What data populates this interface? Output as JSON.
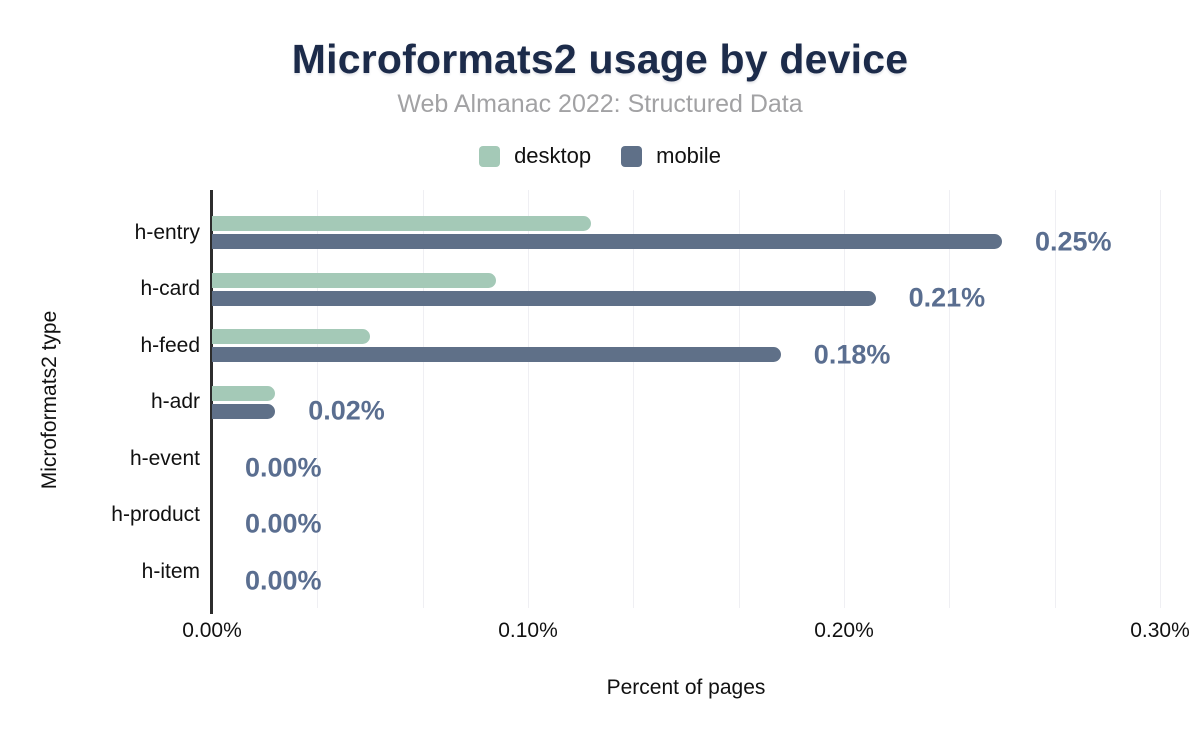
{
  "chart_data": {
    "type": "bar",
    "orientation": "horizontal",
    "title": "Microformats2 usage by device",
    "subtitle": "Web Almanac 2022: Structured Data",
    "xlabel": "Percent of pages",
    "ylabel": "Microformats2 type",
    "categories": [
      "h-entry",
      "h-card",
      "h-feed",
      "h-adr",
      "h-event",
      "h-product",
      "h-item"
    ],
    "series": [
      {
        "name": "desktop",
        "color": "#a4c9b7",
        "values": [
          0.12,
          0.09,
          0.05,
          0.02,
          0.0,
          0.0,
          0.0
        ]
      },
      {
        "name": "mobile",
        "color": "#5f7088",
        "values": [
          0.25,
          0.21,
          0.18,
          0.02,
          0.0,
          0.0,
          0.0
        ]
      }
    ],
    "value_labels": [
      "0.25%",
      "0.21%",
      "0.18%",
      "0.02%",
      "0.00%",
      "0.00%",
      "0.00%"
    ],
    "value_labels_for_series": "mobile",
    "xlim": [
      0,
      0.3
    ],
    "x_ticks": [
      {
        "label": "0.00%",
        "value": 0.0
      },
      {
        "label": "0.10%",
        "value": 0.1
      },
      {
        "label": "0.20%",
        "value": 0.2
      },
      {
        "label": "0.30%",
        "value": 0.3
      }
    ],
    "grid": true,
    "n_grid_intervals": 9,
    "legend_position": "top",
    "colors": {
      "title": "#1c2b4a",
      "subtitle": "#a2a2a4",
      "value_label": "#5a6e90",
      "axis_line": "#2d2d2d",
      "gridline": "#efeff3"
    }
  }
}
